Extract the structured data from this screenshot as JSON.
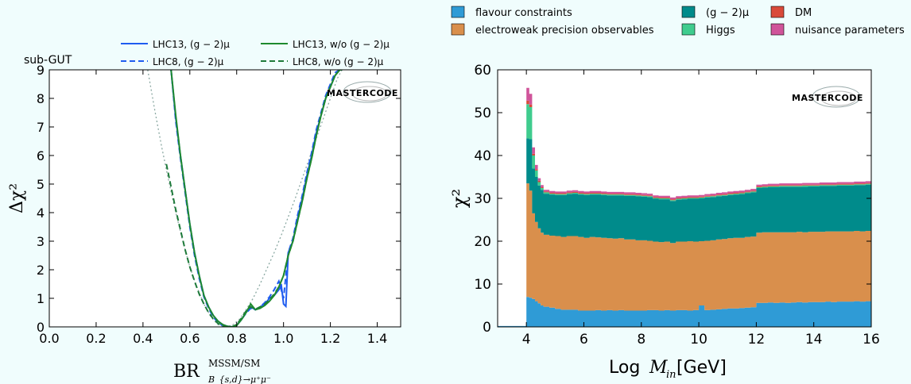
{
  "chart_data": [
    {
      "type": "line",
      "panel_label": "sub-GUT",
      "xlabel": "BR",
      "xlabel_sup": "MSSM/SM",
      "xlabel_sub": "B_{s,d}→μ⁺μ⁻",
      "ylabel": "Δχ²",
      "xlim": [
        0.0,
        1.5
      ],
      "ylim": [
        0,
        9
      ],
      "xticks": [
        "0.0",
        "0.2",
        "0.4",
        "0.6",
        "0.8",
        "1.0",
        "1.2",
        "1.4"
      ],
      "yticks": [
        "0",
        "1",
        "2",
        "3",
        "4",
        "5",
        "6",
        "7",
        "8",
        "9"
      ],
      "legend": [
        {
          "label": "LHC13, (g − 2)μ",
          "color": "#1f5cf0",
          "dash": "solid"
        },
        {
          "label": "LHC8, (g − 2)μ",
          "color": "#1f5cf0",
          "dash": "dashed"
        },
        {
          "label": "LHC13, w/o (g − 2)μ",
          "color": "#1e8a2e",
          "dash": "solid"
        },
        {
          "label": "LHC8, w/o (g − 2)μ",
          "color": "#1e7a3a",
          "dash": "dashed"
        }
      ],
      "logo": "MASTERCODE",
      "series": [
        {
          "key": "lhc13_g2",
          "color": "#1f5cf0",
          "dash": "solid",
          "x": [
            0.52,
            0.54,
            0.56,
            0.58,
            0.6,
            0.62,
            0.64,
            0.66,
            0.68,
            0.7,
            0.72,
            0.74,
            0.76,
            0.78,
            0.8,
            0.82,
            0.84,
            0.86,
            0.88,
            0.9,
            0.92,
            0.94,
            0.96,
            0.98,
            0.99,
            1.0,
            1.01,
            1.02,
            1.04,
            1.06,
            1.08,
            1.1,
            1.12,
            1.14,
            1.16,
            1.18,
            1.2,
            1.22,
            1.24,
            1.25
          ],
          "y": [
            9.0,
            7.3,
            6.0,
            4.8,
            3.6,
            2.6,
            1.8,
            1.1,
            0.7,
            0.4,
            0.2,
            0.08,
            0.02,
            0.0,
            0.05,
            0.25,
            0.5,
            0.7,
            0.6,
            0.7,
            0.8,
            1.0,
            1.1,
            1.3,
            1.5,
            0.8,
            0.72,
            2.6,
            3.0,
            3.8,
            4.5,
            5.3,
            6.0,
            6.8,
            7.4,
            8.0,
            8.4,
            8.8,
            9.0,
            9.0
          ]
        },
        {
          "key": "lhc8_g2",
          "color": "#1f5cf0",
          "dash": "dashed",
          "x": [
            0.52,
            0.54,
            0.56,
            0.58,
            0.6,
            0.62,
            0.64,
            0.66,
            0.68,
            0.7,
            0.72,
            0.74,
            0.76,
            0.78,
            0.8,
            0.82,
            0.84,
            0.86,
            0.88,
            0.9,
            0.92,
            0.94,
            0.96,
            0.98,
            1.0,
            1.02,
            1.04,
            1.06,
            1.08,
            1.1,
            1.12,
            1.14,
            1.16,
            1.18,
            1.2,
            1.22,
            1.24,
            1.25
          ],
          "y": [
            9.0,
            7.2,
            5.9,
            4.7,
            3.5,
            2.5,
            1.7,
            1.05,
            0.65,
            0.35,
            0.15,
            0.05,
            0.0,
            0.0,
            0.06,
            0.25,
            0.48,
            0.65,
            0.6,
            0.7,
            0.85,
            1.05,
            1.3,
            1.6,
            1.0,
            2.6,
            3.1,
            3.9,
            4.6,
            5.4,
            6.1,
            6.9,
            7.5,
            8.1,
            8.5,
            8.9,
            9.0,
            9.0
          ]
        },
        {
          "key": "lhc13_wo",
          "color": "#1e8a2e",
          "dash": "solid",
          "x": [
            0.52,
            0.54,
            0.56,
            0.58,
            0.6,
            0.62,
            0.64,
            0.66,
            0.68,
            0.7,
            0.72,
            0.74,
            0.76,
            0.78,
            0.8,
            0.82,
            0.84,
            0.86,
            0.88,
            0.9,
            0.92,
            0.94,
            0.96,
            0.98,
            1.0,
            1.02,
            1.04,
            1.06,
            1.08,
            1.1,
            1.12,
            1.14,
            1.16,
            1.18,
            1.2,
            1.22,
            1.24,
            1.25
          ],
          "y": [
            9.0,
            7.4,
            6.0,
            4.8,
            3.6,
            2.6,
            1.8,
            1.1,
            0.7,
            0.4,
            0.2,
            0.08,
            0.02,
            0.0,
            0.05,
            0.25,
            0.5,
            0.8,
            0.6,
            0.65,
            0.75,
            0.9,
            1.1,
            1.4,
            1.8,
            2.5,
            3.0,
            3.7,
            4.4,
            5.2,
            5.9,
            6.7,
            7.4,
            8.0,
            8.4,
            8.8,
            9.0,
            9.0
          ]
        },
        {
          "key": "lhc8_wo",
          "color": "#1e7a3a",
          "dash": "dashed",
          "x": [
            0.5,
            0.52,
            0.54,
            0.56,
            0.58,
            0.6,
            0.62,
            0.64,
            0.66,
            0.68,
            0.7,
            0.72,
            0.74,
            0.76,
            0.78,
            0.8,
            0.82,
            0.84,
            0.86,
            0.88,
            0.9,
            0.92,
            0.94,
            0.96,
            0.98,
            1.0,
            1.02,
            1.04,
            1.06,
            1.08,
            1.1,
            1.12,
            1.14,
            1.16,
            1.18,
            1.2,
            1.22,
            1.24,
            1.25
          ],
          "y": [
            5.7,
            4.9,
            4.1,
            3.4,
            2.7,
            2.1,
            1.6,
            1.15,
            0.8,
            0.5,
            0.28,
            0.12,
            0.04,
            0.0,
            0.0,
            0.08,
            0.3,
            0.55,
            0.7,
            0.62,
            0.7,
            0.8,
            0.95,
            1.15,
            1.4,
            1.8,
            2.5,
            3.0,
            3.7,
            4.4,
            5.2,
            5.9,
            6.7,
            7.4,
            8.0,
            8.4,
            8.8,
            9.0,
            9.0
          ]
        },
        {
          "key": "reference_dotted",
          "color": "#8aa8a2",
          "dash": "dotted",
          "x": [
            0.42,
            0.45,
            0.48,
            0.51,
            0.54,
            0.57,
            0.6,
            0.63,
            0.66,
            0.69,
            0.72,
            0.75,
            0.78,
            0.81,
            0.84,
            0.87,
            0.9,
            0.93,
            0.96,
            0.99,
            1.02,
            1.05,
            1.08,
            1.11,
            1.14,
            1.17,
            1.2,
            1.23,
            1.25
          ],
          "y": [
            9.0,
            7.6,
            6.3,
            5.1,
            4.0,
            3.0,
            2.1,
            1.4,
            0.8,
            0.35,
            0.08,
            0.0,
            0.05,
            0.25,
            0.6,
            1.0,
            1.5,
            2.05,
            2.6,
            3.2,
            3.85,
            4.5,
            5.2,
            5.9,
            6.6,
            7.3,
            8.0,
            8.7,
            9.0
          ]
        }
      ]
    },
    {
      "type": "area",
      "stacked": true,
      "xlabel": "Log",
      "xlabel_italic": "M",
      "xlabel_sub": "in",
      "xlabel_unit": "[GeV]",
      "ylabel": "χ²",
      "xlim": [
        3,
        16
      ],
      "ylim": [
        0,
        60
      ],
      "xticks": [
        "4",
        "6",
        "8",
        "10",
        "12",
        "14",
        "16"
      ],
      "yticks": [
        "0",
        "10",
        "20",
        "30",
        "40",
        "50",
        "60"
      ],
      "logo": "MASTERCODE",
      "legend": [
        {
          "label": "flavour constraints",
          "color": "#2f9bd6"
        },
        {
          "label": "electroweak precision observables",
          "color": "#d98f4c"
        },
        {
          "label": "(g − 2)μ",
          "color": "#008b8b"
        },
        {
          "label": "Higgs",
          "color": "#3fcc8e"
        },
        {
          "label": "DM",
          "color": "#d94a3a"
        },
        {
          "label": "nuisance parameters",
          "color": "#d0549a"
        }
      ],
      "x": [
        3.0,
        3.5,
        4.0,
        4.1,
        4.2,
        4.3,
        4.4,
        4.5,
        4.6,
        4.8,
        5.0,
        5.2,
        5.4,
        5.6,
        5.8,
        6.0,
        6.2,
        6.4,
        6.6,
        6.8,
        7.0,
        7.2,
        7.4,
        7.6,
        7.8,
        8.0,
        8.2,
        8.4,
        8.6,
        8.8,
        9.0,
        9.2,
        9.4,
        9.6,
        9.8,
        10.0,
        10.2,
        10.4,
        10.6,
        10.8,
        11.0,
        11.2,
        11.4,
        11.6,
        11.8,
        12.0,
        12.2,
        12.4,
        12.6,
        12.8,
        13.0,
        13.2,
        13.4,
        13.6,
        13.8,
        14.0,
        14.2,
        14.4,
        14.6,
        14.8,
        15.0,
        15.2,
        15.4,
        15.6,
        15.8,
        16.0
      ],
      "series": [
        {
          "name": "flavour constraints",
          "color": "#2f9bd6",
          "values": [
            0.2,
            0.2,
            7.0,
            6.8,
            6.5,
            6.0,
            5.5,
            5.0,
            4.7,
            4.5,
            4.2,
            4.0,
            4.0,
            4.0,
            3.8,
            3.8,
            3.8,
            3.9,
            3.8,
            3.9,
            3.8,
            3.9,
            3.8,
            3.8,
            3.8,
            3.8,
            3.9,
            3.9,
            3.8,
            3.9,
            3.8,
            3.9,
            3.9,
            3.8,
            3.9,
            5.0,
            3.9,
            4.0,
            4.1,
            4.2,
            4.3,
            4.3,
            4.4,
            4.5,
            4.6,
            5.6,
            5.6,
            5.7,
            5.6,
            5.7,
            5.6,
            5.7,
            5.8,
            5.7,
            5.8,
            5.8,
            5.8,
            5.9,
            5.8,
            5.9,
            5.9,
            5.9,
            6.0,
            5.9,
            6.0,
            6.0
          ]
        },
        {
          "name": "electroweak precision observables",
          "color": "#d98f4c",
          "values": [
            0.0,
            0.0,
            26.5,
            25.0,
            20.0,
            18.5,
            17.5,
            17.0,
            16.8,
            16.8,
            17.0,
            17.0,
            17.2,
            17.2,
            17.2,
            17.0,
            17.2,
            17.0,
            17.0,
            16.8,
            16.8,
            16.8,
            16.6,
            16.6,
            16.4,
            16.4,
            16.2,
            16.0,
            16.0,
            16.0,
            15.8,
            16.0,
            16.0,
            16.2,
            16.0,
            15.0,
            16.2,
            16.2,
            16.3,
            16.3,
            16.4,
            16.5,
            16.4,
            16.5,
            16.5,
            16.4,
            16.5,
            16.4,
            16.5,
            16.4,
            16.5,
            16.4,
            16.4,
            16.4,
            16.4,
            16.4,
            16.4,
            16.4,
            16.5,
            16.4,
            16.4,
            16.4,
            16.4,
            16.4,
            16.4,
            16.4
          ]
        },
        {
          "name": "(g − 2)μ",
          "color": "#008b8b",
          "values": [
            0.0,
            0.0,
            10.5,
            12.0,
            10.5,
            10.5,
            10.0,
            10.0,
            9.6,
            9.6,
            9.6,
            9.8,
            9.8,
            9.9,
            9.9,
            10.0,
            9.9,
            10.0,
            10.0,
            10.0,
            10.1,
            10.0,
            10.2,
            10.2,
            10.3,
            10.2,
            10.2,
            10.0,
            10.0,
            9.9,
            9.8,
            9.8,
            9.9,
            9.9,
            10.0,
            10.0,
            10.1,
            10.1,
            10.1,
            10.1,
            10.1,
            10.1,
            10.2,
            10.2,
            10.3,
            10.4,
            10.4,
            10.5,
            10.5,
            10.6,
            10.6,
            10.6,
            10.5,
            10.6,
            10.6,
            10.6,
            10.7,
            10.6,
            10.6,
            10.7,
            10.7,
            10.7,
            10.7,
            10.8,
            10.8,
            10.8
          ]
        },
        {
          "name": "Higgs",
          "color": "#3fcc8e",
          "values": [
            0.0,
            0.0,
            8.0,
            7.5,
            3.0,
            1.5,
            0.8,
            0.4,
            0.3,
            0.2,
            0.2,
            0.2,
            0.2,
            0.2,
            0.2,
            0.2,
            0.2,
            0.2,
            0.2,
            0.2,
            0.2,
            0.2,
            0.2,
            0.2,
            0.2,
            0.2,
            0.2,
            0.2,
            0.2,
            0.2,
            0.2,
            0.2,
            0.2,
            0.2,
            0.2,
            0.2,
            0.2,
            0.2,
            0.2,
            0.2,
            0.2,
            0.2,
            0.2,
            0.2,
            0.2,
            0.2,
            0.2,
            0.2,
            0.2,
            0.2,
            0.2,
            0.2,
            0.2,
            0.3,
            0.2,
            0.2,
            0.2,
            0.2,
            0.2,
            0.2,
            0.2,
            0.2,
            0.2,
            0.2,
            0.2,
            0.2
          ]
        },
        {
          "name": "DM",
          "color": "#d94a3a",
          "values": [
            0.0,
            0.0,
            0.8,
            0.6,
            0.4,
            0.3,
            0.3,
            0.2,
            0.2,
            0.2,
            0.2,
            0.2,
            0.2,
            0.2,
            0.2,
            0.2,
            0.2,
            0.2,
            0.2,
            0.2,
            0.2,
            0.2,
            0.2,
            0.2,
            0.2,
            0.2,
            0.2,
            0.2,
            0.2,
            0.2,
            0.2,
            0.2,
            0.2,
            0.2,
            0.2,
            0.2,
            0.2,
            0.2,
            0.2,
            0.2,
            0.2,
            0.2,
            0.2,
            0.2,
            0.2,
            0.2,
            0.2,
            0.2,
            0.2,
            0.2,
            0.2,
            0.2,
            0.2,
            0.2,
            0.2,
            0.2,
            0.2,
            0.2,
            0.2,
            0.2,
            0.2,
            0.2,
            0.2,
            0.2,
            0.2,
            0.2
          ]
        },
        {
          "name": "nuisance parameters",
          "color": "#d0549a",
          "values": [
            0.0,
            0.0,
            3.0,
            2.5,
            1.5,
            1.0,
            0.6,
            0.5,
            0.4,
            0.4,
            0.4,
            0.4,
            0.4,
            0.4,
            0.4,
            0.4,
            0.4,
            0.4,
            0.4,
            0.4,
            0.4,
            0.4,
            0.4,
            0.4,
            0.4,
            0.4,
            0.4,
            0.4,
            0.4,
            0.4,
            0.4,
            0.4,
            0.4,
            0.4,
            0.4,
            0.4,
            0.4,
            0.4,
            0.4,
            0.4,
            0.4,
            0.4,
            0.4,
            0.4,
            0.4,
            0.4,
            0.4,
            0.4,
            0.4,
            0.4,
            0.4,
            0.4,
            0.4,
            0.4,
            0.4,
            0.4,
            0.4,
            0.4,
            0.4,
            0.4,
            0.4,
            0.4,
            0.4,
            0.4,
            0.4,
            0.4
          ]
        }
      ]
    }
  ]
}
